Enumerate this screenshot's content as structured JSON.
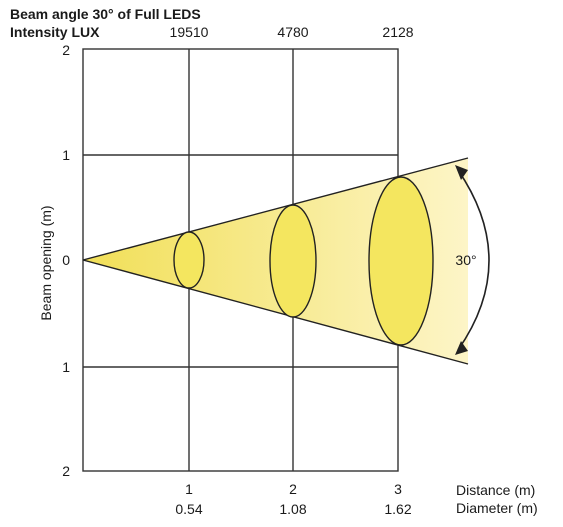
{
  "header": {
    "title": "Beam angle  30°  of Full LEDS",
    "intensity_label": "Intensity LUX",
    "lux_values": [
      "19510",
      "4780",
      "2128"
    ]
  },
  "axes": {
    "y_label": "Beam opening (m)",
    "y_tick_labels": [
      "2",
      "1",
      "0",
      "1",
      "2"
    ],
    "x_distance_labels": [
      "1",
      "2",
      "3"
    ],
    "x_diameter_labels": [
      "0.54",
      "1.08",
      "1.62"
    ],
    "distance_label": "Distance (m)",
    "diameter_label": "Diameter (m)"
  },
  "beam": {
    "angle_label": "30°",
    "colors": {
      "cone_light": "#fdf5c8",
      "cone_dark": "#f1df57",
      "spot_fill": "#f4e65f",
      "spot_stroke": "#222222",
      "grid": "#333333"
    }
  }
}
